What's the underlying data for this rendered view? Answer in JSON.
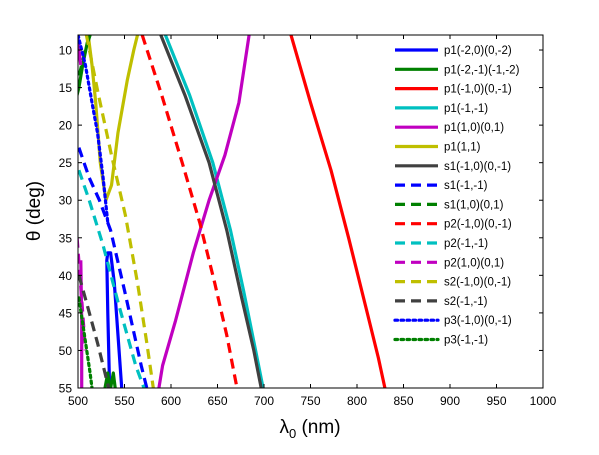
{
  "chart_data": {
    "type": "line",
    "xlabel_main": "λ",
    "xlabel_sub": "0",
    "xlabel_unit": " (nm)",
    "ylabel_sym": "θ",
    "ylabel_unit": " (deg)",
    "xlim": [
      500,
      1000
    ],
    "ylim": [
      8,
      55
    ],
    "y_reversed": true,
    "x_ticks": [
      500,
      550,
      600,
      650,
      700,
      750,
      800,
      850,
      900,
      950,
      1000
    ],
    "y_ticks": [
      10,
      15,
      20,
      25,
      30,
      35,
      40,
      45,
      50,
      55
    ],
    "grid": false,
    "legend_position": "right",
    "series": [
      {
        "name": "p1(-2,0)(0,-2)",
        "color": "#0000ff",
        "style": "solid",
        "points": [
          [
            534,
            55
          ],
          [
            532,
            45
          ],
          [
            531,
            38
          ],
          [
            532,
            37
          ],
          [
            535,
            37
          ],
          [
            539,
            41
          ],
          [
            543,
            48
          ],
          [
            547,
            55
          ]
        ]
      },
      {
        "name": "p1(-2,-1)(-1,-2)",
        "color": "#008000",
        "style": "solid",
        "points": [
          [
            497,
            17
          ],
          [
            501,
            15
          ],
          [
            505,
            12
          ],
          [
            510,
            9
          ],
          [
            514,
            7.5
          ]
        ],
        "extra": [
          [
            [
              529,
              55
            ],
            [
              532,
              53
            ],
            [
              534,
              55
            ]
          ],
          [
            [
              535,
              55
            ],
            [
              538,
              53
            ],
            [
              540,
              55
            ]
          ]
        ]
      },
      {
        "name": "p1(-1,0)(0,-1)",
        "color": "#ff0000",
        "style": "solid",
        "points": [
          [
            729,
            8
          ],
          [
            750,
            17
          ],
          [
            772,
            26
          ],
          [
            791,
            35
          ],
          [
            809,
            44
          ],
          [
            823,
            51
          ],
          [
            830,
            55
          ]
        ]
      },
      {
        "name": "p1(-1,-1)",
        "color": "#00c0c0",
        "style": "solid",
        "points": [
          [
            594,
            8
          ],
          [
            620,
            16
          ],
          [
            645,
            25
          ],
          [
            664,
            34
          ],
          [
            678,
            42
          ],
          [
            691,
            50
          ],
          [
            699,
            55
          ]
        ]
      },
      {
        "name": "p1(1,0)(0,1)",
        "color": "#c000c0",
        "style": "solid",
        "points": [
          [
            684,
            8
          ],
          [
            673,
            17
          ],
          [
            658,
            24
          ],
          [
            641,
            30
          ],
          [
            624,
            37
          ],
          [
            605,
            46
          ],
          [
            591,
            52
          ],
          [
            587,
            55
          ]
        ],
        "extra": [
          [
            [
              499,
              8
            ],
            [
              501,
              10
            ],
            [
              503,
              12
            ]
          ],
          [
            [
              503,
              38
            ],
            [
              504,
              46
            ],
            [
              504,
              55
            ]
          ]
        ]
      },
      {
        "name": "p1(1,1)",
        "color": "#bfbf00",
        "style": "solid",
        "points": [
          [
            511,
            8
          ],
          [
            515,
            12
          ],
          [
            519,
            17
          ],
          [
            524,
            25
          ],
          [
            530,
            30
          ],
          [
            536,
            28
          ],
          [
            543,
            21
          ],
          [
            553,
            14
          ],
          [
            560,
            10
          ],
          [
            564,
            8
          ]
        ]
      },
      {
        "name": "s1(-1,0)(0,-1)",
        "color": "#404040",
        "style": "solid",
        "points": [
          [
            589,
            8
          ],
          [
            615,
            16
          ],
          [
            641,
            25
          ],
          [
            660,
            34
          ],
          [
            676,
            43
          ],
          [
            689,
            50
          ],
          [
            697,
            55
          ]
        ]
      },
      {
        "name": "s1(-1,-1)",
        "color": "#0000ff",
        "style": "dashed",
        "points": [
          [
            501,
            23
          ],
          [
            512,
            27
          ],
          [
            523,
            30
          ],
          [
            535,
            34
          ],
          [
            550,
            42
          ],
          [
            568,
            52
          ],
          [
            574,
            55
          ]
        ]
      },
      {
        "name": "s1(1,0)(0,1)",
        "color": "#008000",
        "style": "dashed",
        "points": [
          [
            513,
            8
          ],
          [
            508,
            10
          ],
          [
            504,
            12
          ],
          [
            500,
            14
          ]
        ]
      },
      {
        "name": "p2(-1,0)(0,-1)",
        "color": "#ff0000",
        "style": "dashed",
        "points": [
          [
            569,
            8
          ],
          [
            590,
            16
          ],
          [
            612,
            25
          ],
          [
            631,
            33
          ],
          [
            647,
            41
          ],
          [
            660,
            48
          ],
          [
            671,
            55
          ]
        ]
      },
      {
        "name": "p2(-1,-1)",
        "color": "#00c0c0",
        "style": "dashed",
        "points": [
          [
            501,
            26
          ],
          [
            512,
            30
          ],
          [
            527,
            36
          ],
          [
            544,
            44
          ],
          [
            562,
            52
          ],
          [
            571,
            55
          ]
        ]
      },
      {
        "name": "p2(1,0)(0,1)",
        "color": "#c000c0",
        "style": "dashed",
        "points": [
          [
            499,
            35
          ],
          [
            502,
            40
          ],
          [
            505,
            45
          ],
          [
            508,
            50
          ]
        ]
      },
      {
        "name": "s2(-1,0)(0,-1)",
        "color": "#bfbf00",
        "style": "dashed",
        "points": [
          [
            509,
            8
          ],
          [
            522,
            16
          ],
          [
            536,
            24
          ],
          [
            551,
            32
          ],
          [
            564,
            41
          ],
          [
            574,
            49
          ],
          [
            581,
            55
          ]
        ]
      },
      {
        "name": "s2(-1,-1)",
        "color": "#404040",
        "style": "dashed",
        "points": [
          [
            501,
            40
          ],
          [
            510,
            44
          ],
          [
            521,
            49
          ],
          [
            533,
            55
          ]
        ]
      },
      {
        "name": "p3(-1,0)(0,-1)",
        "color": "#0000ff",
        "style": "dotted",
        "points": [
          [
            500,
            8
          ],
          [
            508,
            12
          ],
          [
            515,
            17
          ],
          [
            521,
            21
          ],
          [
            527,
            27
          ],
          [
            532,
            33
          ]
        ]
      },
      {
        "name": "p3(-1,-1)",
        "color": "#008000",
        "style": "dotted",
        "points": [
          [
            501,
            43
          ],
          [
            507,
            48
          ],
          [
            513,
            53
          ],
          [
            515,
            55
          ]
        ]
      }
    ]
  }
}
